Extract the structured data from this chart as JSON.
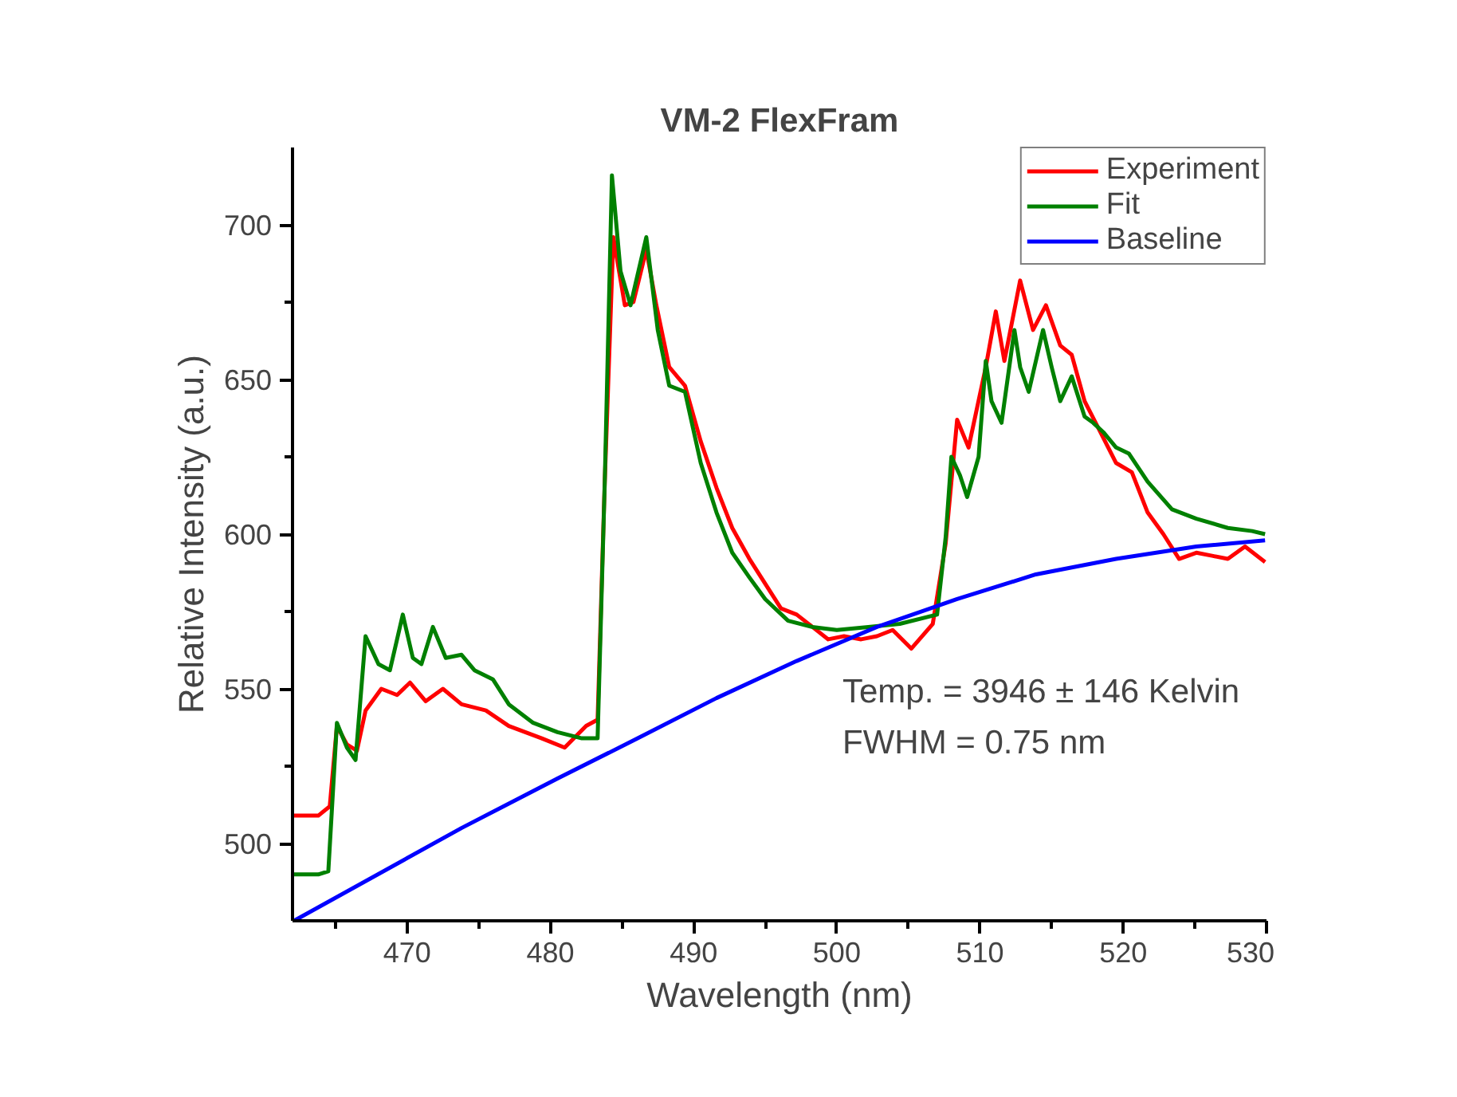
{
  "chart_data": {
    "type": "line",
    "title": "VM-2 FlexFram",
    "xlabel": "Wavelength (nm)",
    "ylabel": "Relative Intensity (a.u.)",
    "xlim": [
      462,
      530
    ],
    "ylim": [
      475,
      725
    ],
    "xticks": [
      {
        "value": 465,
        "label": null
      },
      470,
      {
        "value": 475,
        "label": null
      },
      480,
      {
        "value": 485,
        "label": null
      },
      490,
      {
        "value": 495,
        "label": null
      },
      500,
      {
        "value": 505,
        "label": null
      },
      510,
      {
        "value": 515,
        "label": null
      },
      520,
      {
        "value": 525,
        "label": null
      },
      530
    ],
    "yticks": [
      500,
      {
        "value": 525,
        "label": null
      },
      550,
      {
        "value": 575,
        "label": null
      },
      600,
      {
        "value": 625,
        "label": null
      },
      650,
      {
        "value": 675,
        "label": null
      },
      700
    ],
    "grid": false,
    "legend": "top right",
    "marker": "none",
    "line_style": "solid",
    "annotations": [
      "Temp. = 3946 ± 146 Kelvin",
      "FWHM = 0.75 nm"
    ],
    "series": [
      {
        "name": "Experiment",
        "color": "#ff0000",
        "x": [
          462.1,
          463.8,
          464.6,
          465.1,
          465.8,
          466.5,
          467.1,
          468.2,
          469.3,
          470.2,
          471.3,
          472.5,
          473.8,
          475.5,
          477.1,
          479.4,
          481,
          482.5,
          483.3,
          483.8,
          484.4,
          485.2,
          485.8,
          486.7,
          487.4,
          488.3,
          489.4,
          490.5,
          491.6,
          492.7,
          493.9,
          495,
          496.1,
          497.2,
          498.3,
          499.4,
          500.5,
          501.7,
          502.8,
          503.9,
          505.2,
          506.7,
          507.6,
          508.4,
          509.2,
          510.4,
          511.1,
          511.7,
          512.8,
          513.7,
          514.6,
          515.6,
          516.4,
          517.3,
          518.4,
          519.5,
          520.6,
          521.7,
          522.8,
          523.9,
          525.1,
          526.2,
          527.3,
          528.5,
          529.9
        ],
        "values": [
          509,
          509,
          512,
          538,
          532,
          530,
          543,
          550,
          548,
          552,
          546,
          550,
          545,
          543,
          538,
          534,
          531,
          538,
          540,
          617,
          696,
          674,
          675,
          692,
          674,
          654,
          648,
          630,
          615,
          602,
          592,
          584,
          576,
          574,
          570,
          566,
          567,
          566,
          567,
          569,
          563,
          571,
          597,
          637,
          628,
          654,
          672,
          656,
          682,
          666,
          674,
          661,
          658,
          643,
          633,
          623,
          620,
          607,
          600,
          592,
          594,
          593,
          592,
          596,
          591
        ]
      },
      {
        "name": "Fit",
        "color": "#008000",
        "x": [
          462.1,
          463.8,
          464.5,
          465.1,
          465.8,
          466.4,
          467.1,
          468,
          468.8,
          469.7,
          470.4,
          471,
          471.8,
          472.7,
          473.8,
          474.7,
          476,
          477.1,
          478.8,
          480.5,
          482.2,
          483.3,
          483.8,
          484.3,
          484.9,
          485.6,
          486.7,
          487.5,
          488.3,
          489.4,
          490.5,
          491.6,
          492.7,
          493.9,
          495,
          496.6,
          498.3,
          500,
          502.2,
          504.4,
          507,
          507.6,
          508,
          508.6,
          509.1,
          509.9,
          510.4,
          510.8,
          511.5,
          512.4,
          512.8,
          513.4,
          514.4,
          515,
          515.6,
          516.4,
          517.3,
          517.9,
          518.6,
          519.5,
          520.4,
          521.7,
          523.4,
          525.1,
          527.3,
          529,
          529.9
        ],
        "values": [
          490,
          490,
          491,
          539,
          531,
          527,
          567,
          558,
          556,
          574,
          560,
          558,
          570,
          560,
          561,
          556,
          553,
          545,
          539,
          536,
          534,
          534,
          617,
          716,
          685,
          674,
          696,
          666,
          648,
          646,
          623,
          607,
          594,
          586,
          579,
          572,
          570,
          569,
          570,
          571,
          574,
          599,
          625,
          619,
          612,
          625,
          656,
          643,
          636,
          666,
          654,
          646,
          666,
          654,
          643,
          651,
          638,
          636,
          633,
          628,
          626,
          617,
          608,
          605,
          602,
          601,
          600
        ]
      },
      {
        "name": "Baseline",
        "color": "#0000ff",
        "x": [
          462.1,
          473.8,
          480.5,
          486.1,
          491.6,
          497.2,
          502.8,
          508.4,
          513.9,
          519.5,
          525.1,
          529.9
        ],
        "values": [
          475,
          505,
          521,
          534,
          547,
          559,
          570,
          579,
          587,
          592,
          596,
          598
        ]
      }
    ]
  }
}
